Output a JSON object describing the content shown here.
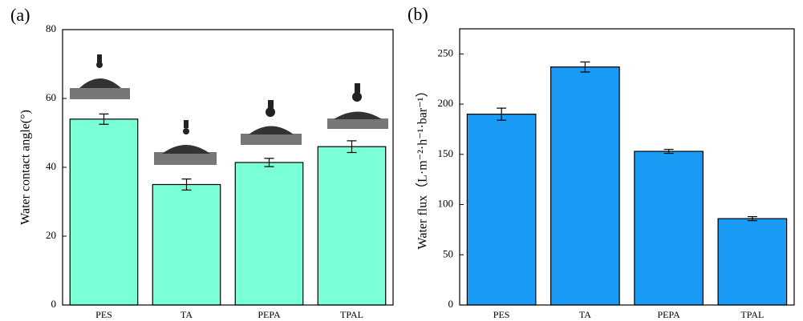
{
  "chart_data": [
    {
      "type": "bar",
      "panel_label": "(a)",
      "ylabel": "Water contact angle(°)",
      "categories": [
        "PES",
        "TA",
        "PEPA",
        "TPAL"
      ],
      "values": [
        54,
        35,
        41.4,
        46
      ],
      "errors": [
        1.5,
        1.6,
        1.2,
        1.7
      ],
      "color": "#7affd6",
      "ylim": [
        0,
        80
      ],
      "yticks": [
        0,
        20,
        40,
        60,
        80
      ]
    },
    {
      "type": "bar",
      "panel_label": "(b)",
      "ylabel": "Water flux（L·m⁻²·h⁻¹·bar⁻¹）",
      "categories": [
        "PES",
        "TA",
        "PEPA",
        "TPAL"
      ],
      "values": [
        190,
        237,
        153,
        86
      ],
      "errors": [
        6,
        5,
        2,
        2
      ],
      "color": "#1a9bf5",
      "ylim": [
        0,
        275
      ],
      "yticks": [
        0,
        50,
        100,
        150,
        200,
        250
      ]
    }
  ]
}
